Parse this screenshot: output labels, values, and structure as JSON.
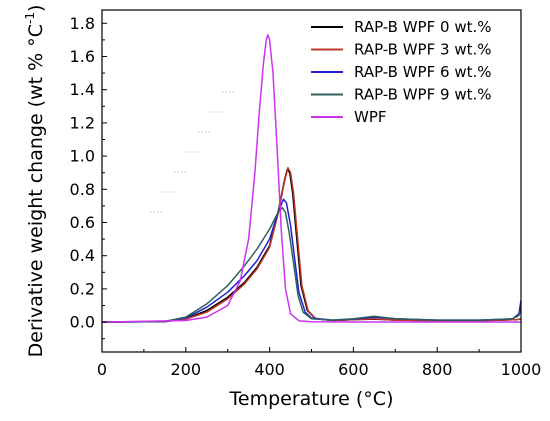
{
  "chart_data": {
    "type": "line",
    "xlabel": "Temperature (°C)",
    "ylabel": "Derivative weight change (wt % °C",
    "ylabel_sup": "-1",
    "ylabel_close": ")",
    "xlim": [
      0,
      1000
    ],
    "ylim": [
      -0.18,
      1.88
    ],
    "x_ticks": [
      0,
      200,
      400,
      600,
      800,
      1000
    ],
    "y_ticks": [
      0.0,
      0.2,
      0.4,
      0.6,
      0.8,
      1.0,
      1.2,
      1.4,
      1.6,
      1.8
    ],
    "x_tick_labels": [
      "0",
      "200",
      "400",
      "600",
      "800",
      "1000"
    ],
    "y_tick_labels": [
      "0.0",
      "0.2",
      "0.4",
      "0.6",
      "0.8",
      "1.0",
      "1.2",
      "1.4",
      "1.6",
      "1.8"
    ],
    "grid": false,
    "legend_position": "top-right",
    "series": [
      {
        "name": "RAP-B WPF 0 wt.%",
        "color": "#000000",
        "points": [
          [
            0,
            0
          ],
          [
            150,
            0.003
          ],
          [
            200,
            0.02
          ],
          [
            250,
            0.07
          ],
          [
            300,
            0.15
          ],
          [
            340,
            0.24
          ],
          [
            370,
            0.33
          ],
          [
            400,
            0.46
          ],
          [
            420,
            0.66
          ],
          [
            435,
            0.85
          ],
          [
            442,
            0.92
          ],
          [
            448,
            0.9
          ],
          [
            455,
            0.78
          ],
          [
            465,
            0.5
          ],
          [
            475,
            0.22
          ],
          [
            490,
            0.07
          ],
          [
            510,
            0.02
          ],
          [
            550,
            0.01
          ],
          [
            600,
            0.015
          ],
          [
            650,
            0.018
          ],
          [
            700,
            0.012
          ],
          [
            800,
            0.008
          ],
          [
            900,
            0.008
          ],
          [
            990,
            0.015
          ],
          [
            1000,
            0.02
          ]
        ]
      },
      {
        "name": "RAP-B WPF 3 wt.%",
        "color": "#c0392b",
        "points": [
          [
            0,
            0
          ],
          [
            150,
            0.003
          ],
          [
            200,
            0.018
          ],
          [
            250,
            0.06
          ],
          [
            300,
            0.14
          ],
          [
            340,
            0.23
          ],
          [
            370,
            0.32
          ],
          [
            400,
            0.45
          ],
          [
            420,
            0.65
          ],
          [
            435,
            0.84
          ],
          [
            444,
            0.93
          ],
          [
            450,
            0.9
          ],
          [
            457,
            0.78
          ],
          [
            467,
            0.5
          ],
          [
            477,
            0.22
          ],
          [
            492,
            0.07
          ],
          [
            510,
            0.02
          ],
          [
            550,
            0.01
          ],
          [
            600,
            0.015
          ],
          [
            650,
            0.02
          ],
          [
            700,
            0.012
          ],
          [
            800,
            0.008
          ],
          [
            900,
            0.008
          ],
          [
            990,
            0.015
          ],
          [
            1000,
            0.02
          ]
        ]
      },
      {
        "name": "RAP-B WPF 6 wt.%",
        "color": "#2222cc",
        "points": [
          [
            0,
            0
          ],
          [
            150,
            0.004
          ],
          [
            200,
            0.025
          ],
          [
            250,
            0.09
          ],
          [
            300,
            0.18
          ],
          [
            340,
            0.28
          ],
          [
            370,
            0.37
          ],
          [
            400,
            0.5
          ],
          [
            420,
            0.66
          ],
          [
            433,
            0.74
          ],
          [
            440,
            0.72
          ],
          [
            450,
            0.58
          ],
          [
            460,
            0.38
          ],
          [
            470,
            0.18
          ],
          [
            485,
            0.06
          ],
          [
            500,
            0.025
          ],
          [
            550,
            0.012
          ],
          [
            600,
            0.018
          ],
          [
            650,
            0.03
          ],
          [
            700,
            0.02
          ],
          [
            800,
            0.012
          ],
          [
            900,
            0.012
          ],
          [
            980,
            0.02
          ],
          [
            995,
            0.05
          ],
          [
            1000,
            0.13
          ]
        ]
      },
      {
        "name": "RAP-B WPF 9 wt.%",
        "color": "#2f5f5f",
        "points": [
          [
            0,
            0
          ],
          [
            150,
            0.005
          ],
          [
            200,
            0.03
          ],
          [
            250,
            0.11
          ],
          [
            300,
            0.22
          ],
          [
            340,
            0.34
          ],
          [
            370,
            0.44
          ],
          [
            400,
            0.56
          ],
          [
            420,
            0.66
          ],
          [
            430,
            0.69
          ],
          [
            438,
            0.66
          ],
          [
            448,
            0.52
          ],
          [
            458,
            0.34
          ],
          [
            468,
            0.16
          ],
          [
            480,
            0.06
          ],
          [
            500,
            0.02
          ],
          [
            550,
            0.012
          ],
          [
            600,
            0.02
          ],
          [
            650,
            0.035
          ],
          [
            700,
            0.02
          ],
          [
            800,
            0.012
          ],
          [
            900,
            0.012
          ],
          [
            980,
            0.02
          ],
          [
            995,
            0.04
          ],
          [
            1000,
            0.08
          ]
        ]
      },
      {
        "name": "WPF",
        "color": "#cc33ee",
        "points": [
          [
            0,
            0
          ],
          [
            200,
            0.01
          ],
          [
            250,
            0.03
          ],
          [
            300,
            0.1
          ],
          [
            330,
            0.25
          ],
          [
            350,
            0.5
          ],
          [
            365,
            0.9
          ],
          [
            375,
            1.25
          ],
          [
            385,
            1.55
          ],
          [
            392,
            1.7
          ],
          [
            396,
            1.73
          ],
          [
            400,
            1.7
          ],
          [
            408,
            1.5
          ],
          [
            418,
            1.05
          ],
          [
            428,
            0.55
          ],
          [
            438,
            0.2
          ],
          [
            450,
            0.05
          ],
          [
            470,
            0.008
          ],
          [
            500,
            0.002
          ],
          [
            600,
            0.001
          ],
          [
            800,
            0.001
          ],
          [
            1000,
            0.001
          ]
        ]
      }
    ]
  }
}
